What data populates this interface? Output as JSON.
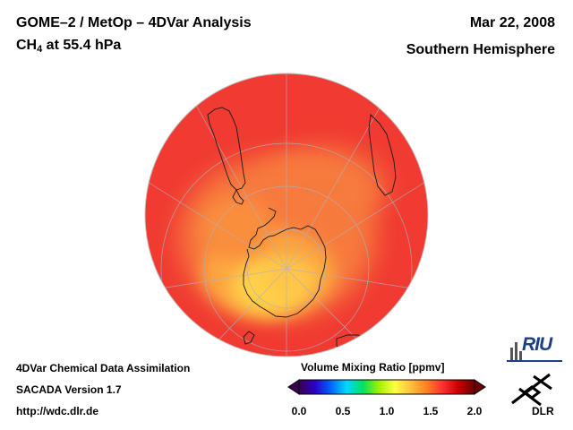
{
  "header": {
    "title": "GOME–2 / MetOp – 4DVar Analysis",
    "species_main": "CH",
    "species_sub": "4",
    "species_rest": " at 55.4 hPa",
    "date": "Mar 22, 2008",
    "hemisphere": "Southern Hemisphere"
  },
  "footer": {
    "line1": "4DVar Chemical Data Assimilation",
    "line2": "SACADA Version 1.7",
    "line3": "http://wdc.dlr.de"
  },
  "colorbar": {
    "title": "Volume Mixing Ratio [ppmv]",
    "ticks": [
      {
        "label": "0.0",
        "value": 0.0
      },
      {
        "label": "0.5",
        "value": 0.5
      },
      {
        "label": "1.0",
        "value": 1.0
      },
      {
        "label": "1.5",
        "value": 1.5
      },
      {
        "label": "2.0",
        "value": 2.0
      }
    ],
    "range": [
      0.0,
      2.0
    ],
    "colors": [
      "#3a0050",
      "#2a00c8",
      "#0066ff",
      "#00d8ff",
      "#00e060",
      "#a0f000",
      "#ffff40",
      "#ffc040",
      "#ff8020",
      "#ff3030",
      "#c80000",
      "#6a0000"
    ]
  },
  "logos": {
    "riu": "RIU",
    "dlr": "DLR"
  },
  "map": {
    "projection": "orthographic",
    "center": "South Pole",
    "field_colors": {
      "background": "#f03a32",
      "mid": "#f77a3c",
      "high": "#fca63f",
      "peak": "#ffd048"
    }
  }
}
